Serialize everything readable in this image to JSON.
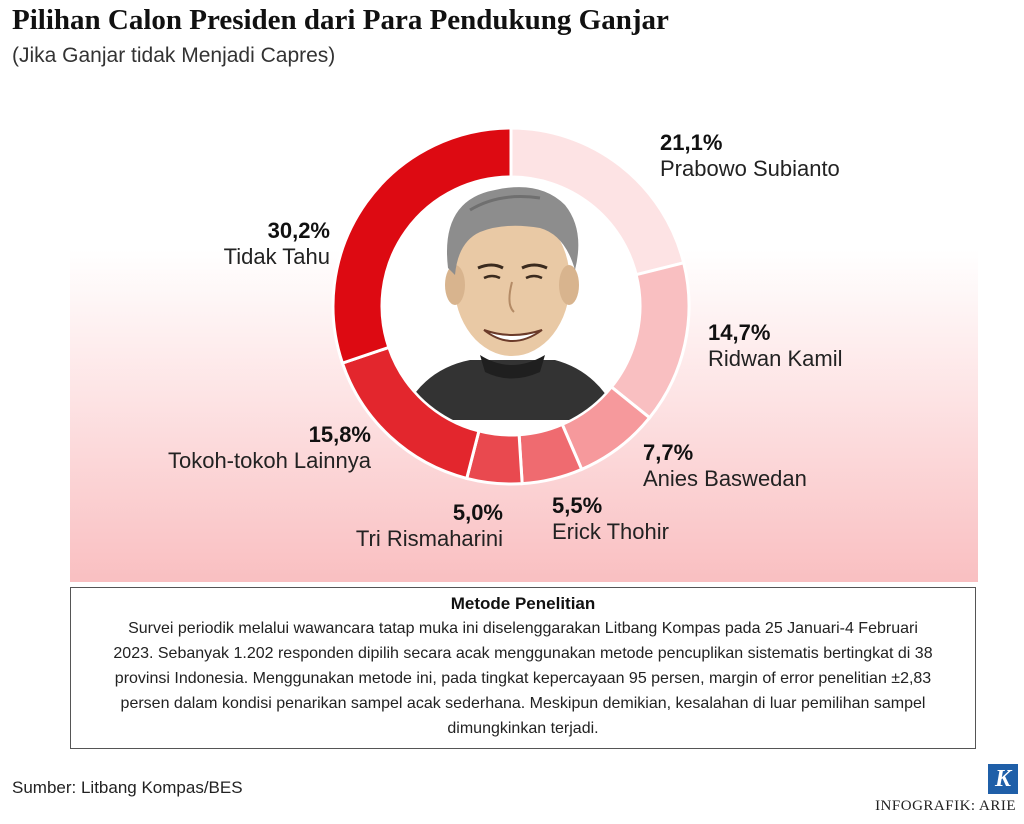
{
  "title": "Pilihan Calon Presiden dari Para Pendukung Ganjar",
  "subtitle": "(Jika Ganjar tidak Menjadi Capres)",
  "chart_data": {
    "type": "pie",
    "style": "donut",
    "title": "Pilihan Calon Presiden dari Para Pendukung Ganjar",
    "slices": [
      {
        "name": "Prabowo Subianto",
        "value": 21.1,
        "label": "21,1%",
        "color": "#fde3e4"
      },
      {
        "name": "Ridwan Kamil",
        "value": 14.7,
        "label": "14,7%",
        "color": "#f9bfc1"
      },
      {
        "name": "Anies Baswedan",
        "value": 7.7,
        "label": "7,7%",
        "color": "#f6999c"
      },
      {
        "name": "Erick Thohir",
        "value": 5.5,
        "label": "5,5%",
        "color": "#ef6b70"
      },
      {
        "name": "Tri Rismaharini",
        "value": 5.0,
        "label": "5,0%",
        "color": "#e9494f"
      },
      {
        "name": "Tokoh-tokoh Lainnya",
        "value": 15.8,
        "label": "15,8%",
        "color": "#e3262d"
      },
      {
        "name": "Tidak Tahu",
        "value": 30.2,
        "label": "30,2%",
        "color": "#dd0a12"
      }
    ]
  },
  "method": {
    "title": "Metode Penelitian",
    "body": "Survei periodik melalui wawancara tatap muka ini diselenggarakan Litbang Kompas pada 25 Januari-4 Februari 2023. Sebanyak 1.202 responden dipilih secara acak menggunakan metode pencuplikan sistematis bertingkat di 38 provinsi Indonesia. Menggunakan metode ini, pada tingkat kepercayaan 95 persen, margin of error penelitian ±2,83 persen dalam kondisi penarikan sampel acak sederhana. Meskipun demikian, kesalahan di luar pemilihan sampel dimungkinkan terjadi."
  },
  "source": "Sumber: Litbang Kompas/BES",
  "logo_letter": "K",
  "credit": "INFOGRAFIK: ARIE",
  "icons": {
    "portrait": "portrait-illustration"
  }
}
